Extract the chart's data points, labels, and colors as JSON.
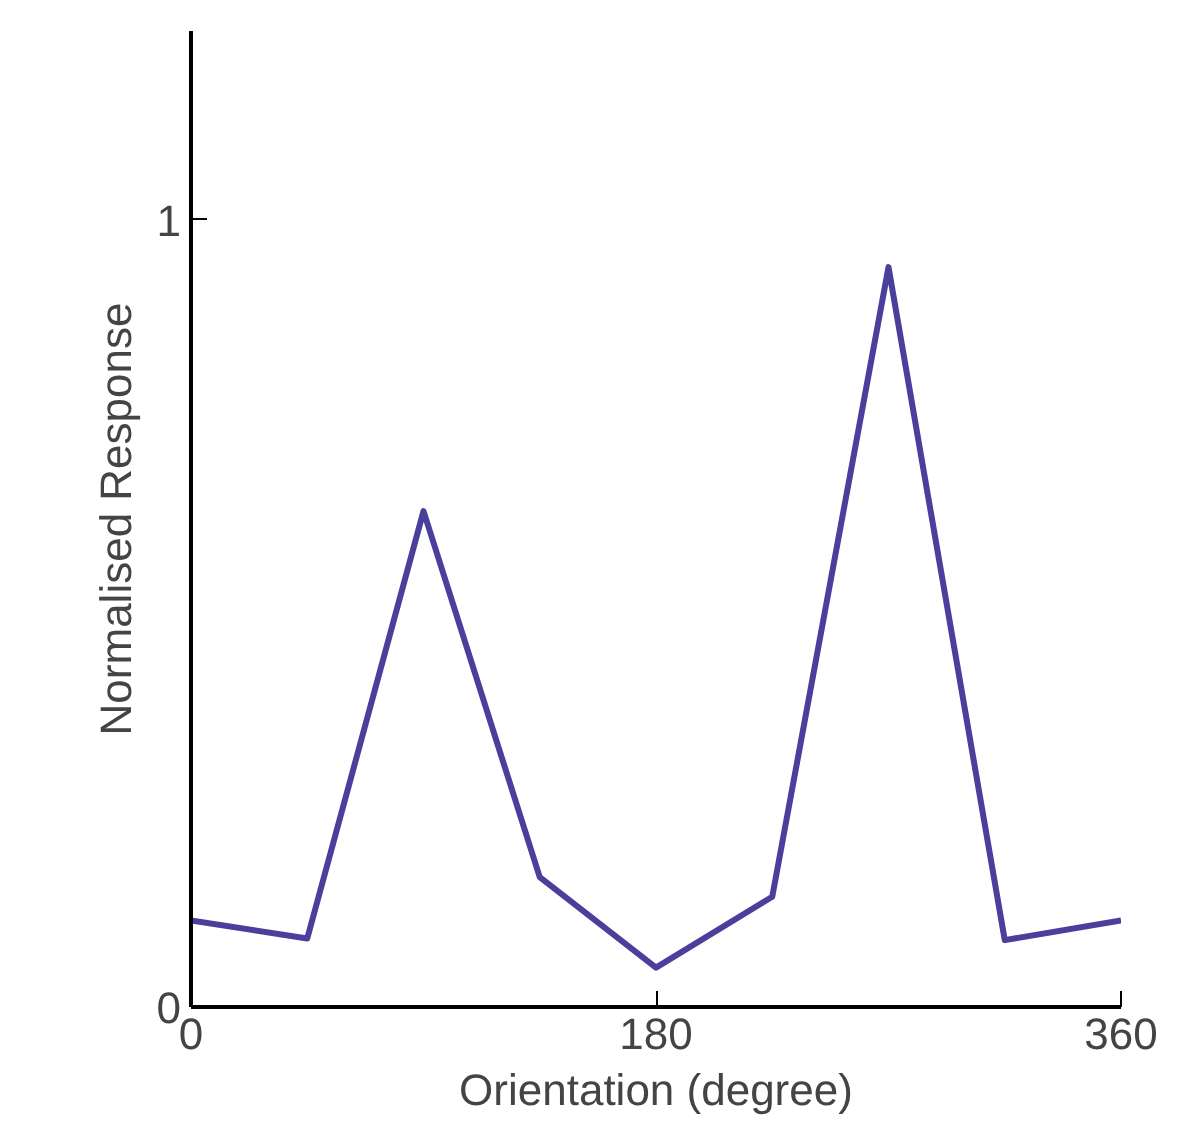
{
  "chart_data": {
    "type": "line",
    "xlabel": "Orientation (degree)",
    "ylabel": "Normalised Response",
    "x": [
      0,
      45,
      90,
      135,
      180,
      225,
      270,
      315,
      360
    ],
    "series": [
      {
        "color": "#4b3f9c",
        "values": [
          0.11,
          0.087,
          0.63,
          0.165,
          0.05,
          0.14,
          0.94,
          0.085,
          0.11
        ]
      }
    ],
    "xlim": [
      0,
      360
    ],
    "ylim": [
      0,
      1.24
    ],
    "xticks": [
      0,
      180,
      360
    ],
    "yticks": [
      0,
      1
    ],
    "grid": false,
    "marker": "none",
    "line_style": "solid"
  }
}
